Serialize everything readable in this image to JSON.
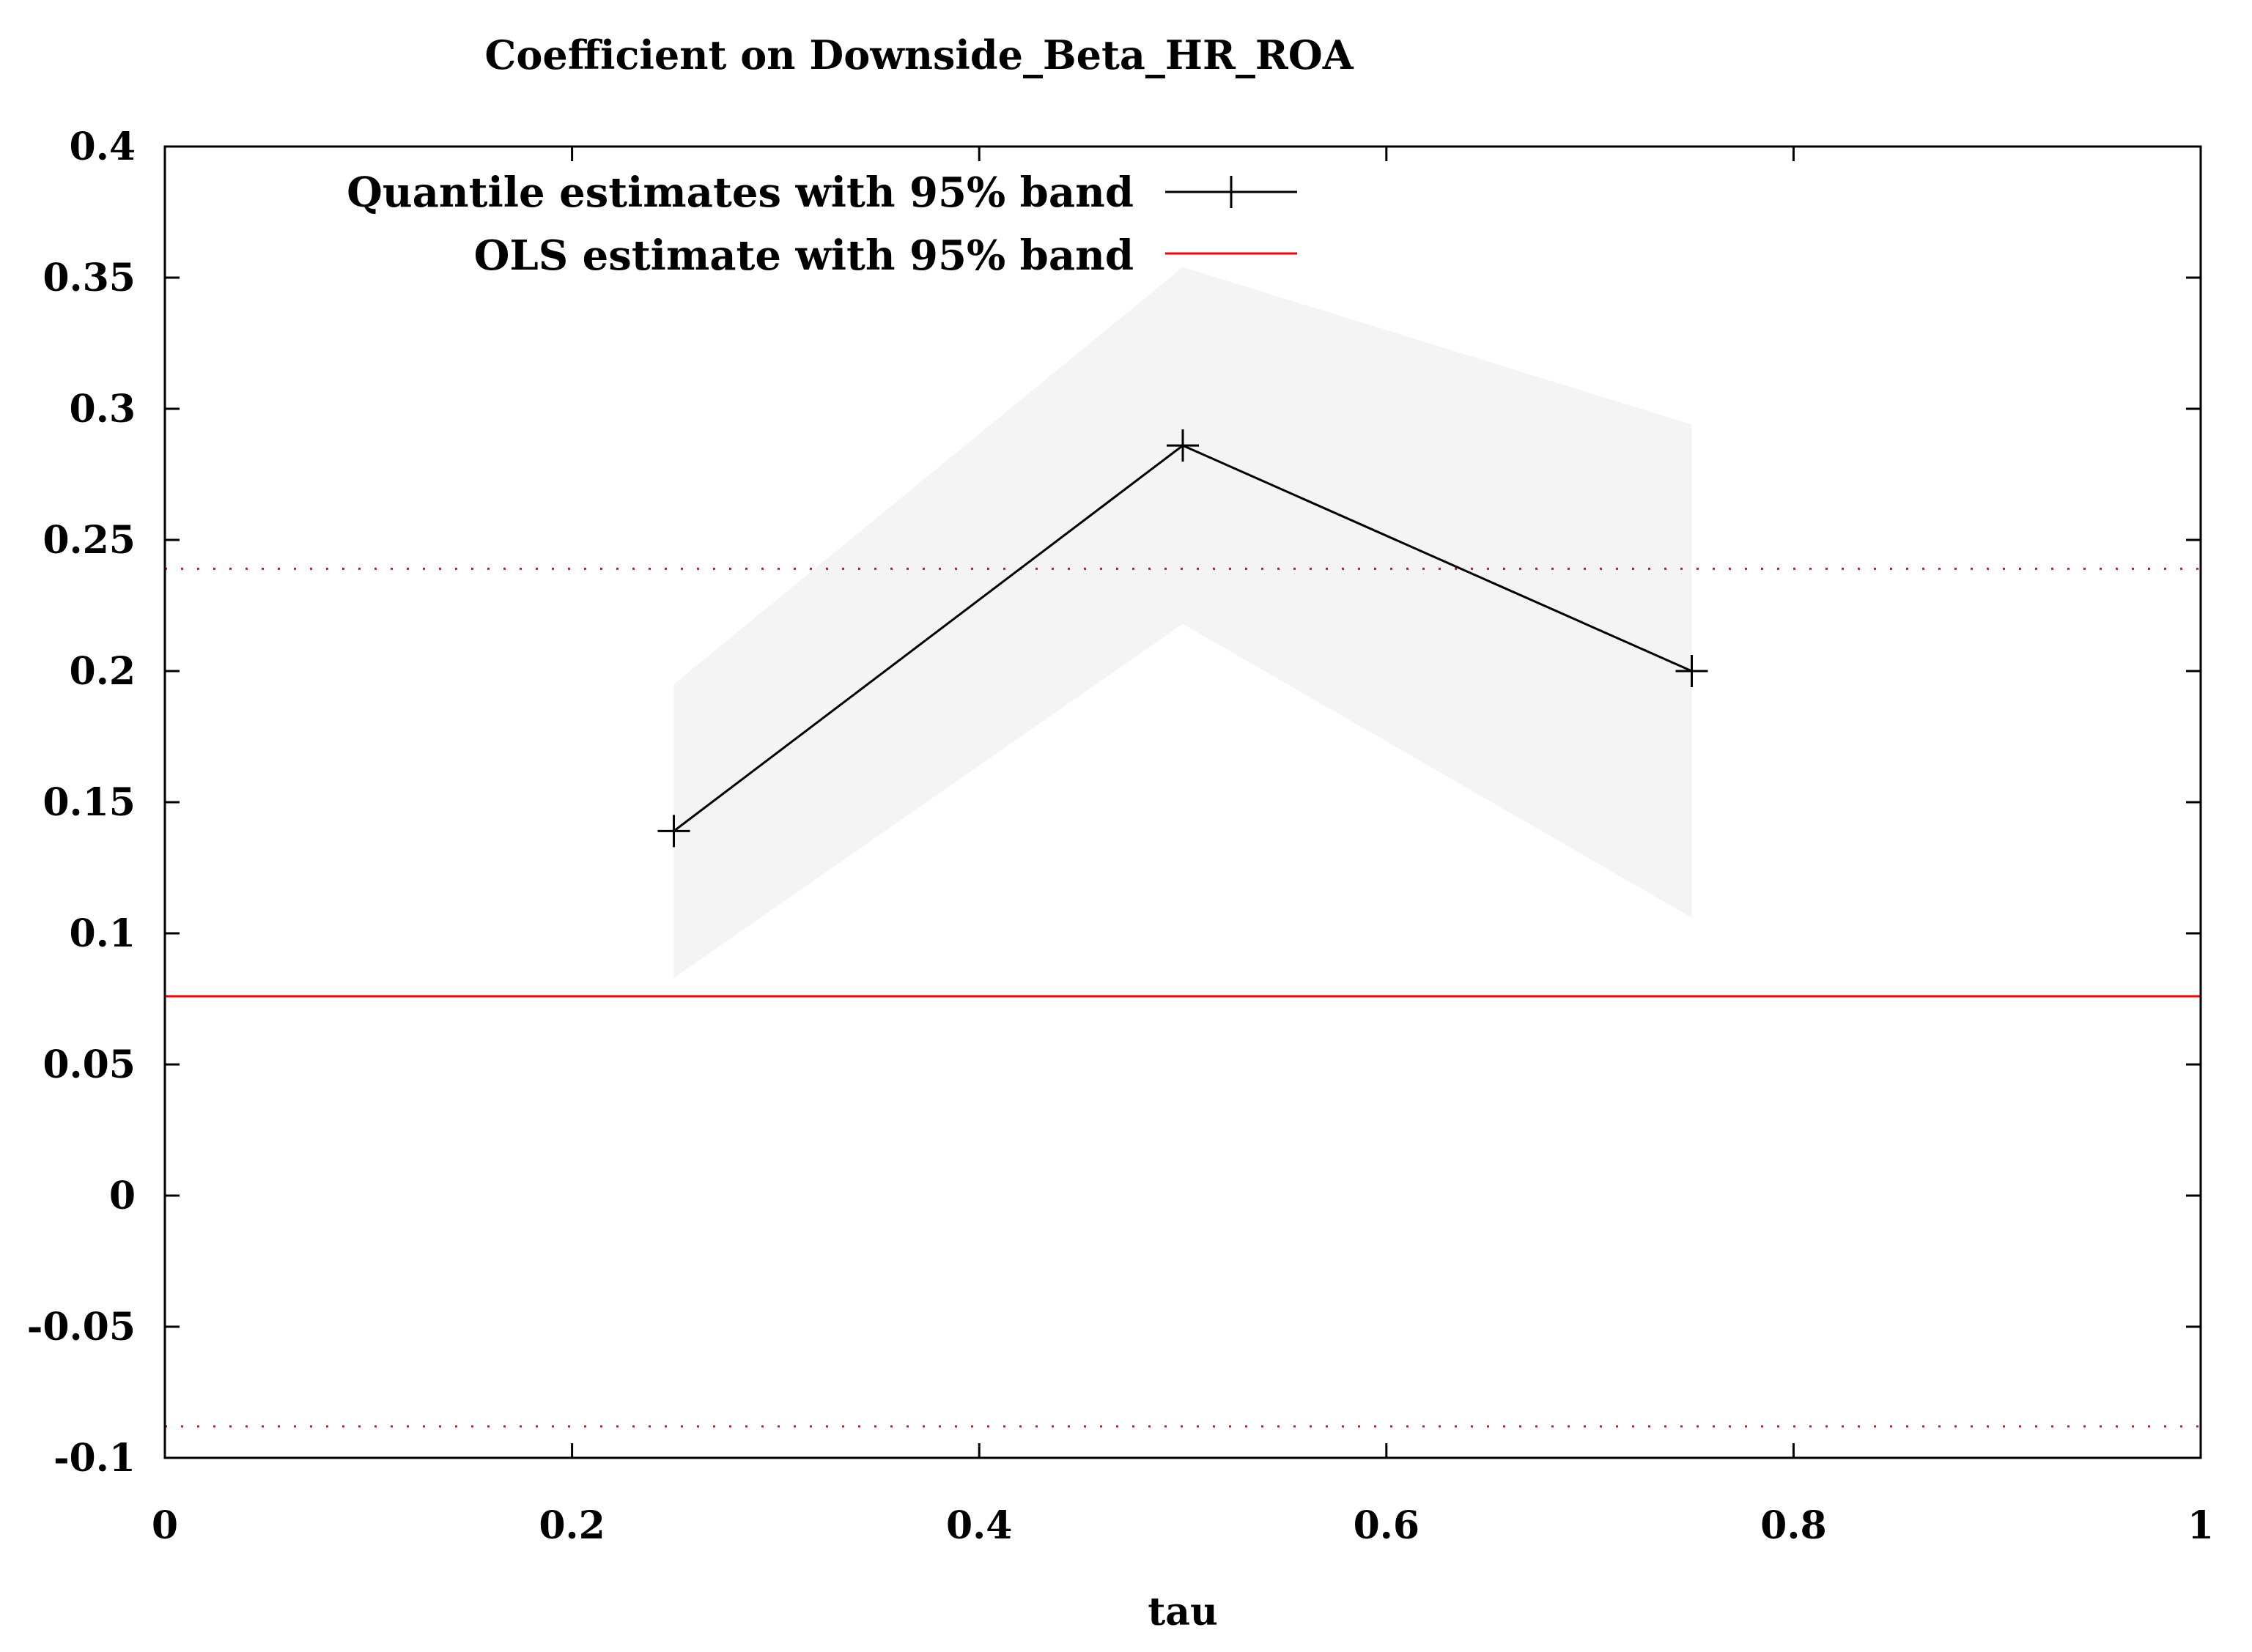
{
  "chart_data": {
    "type": "line",
    "title": "Coefficient on Downside_Beta_HR_ROA",
    "xlabel": "tau",
    "ylabel": "",
    "xlim": [
      0,
      1
    ],
    "ylim": [
      -0.1,
      0.4
    ],
    "grid": false,
    "legend_position": "top-left",
    "x_ticks": [
      {
        "value": 0,
        "label": "0"
      },
      {
        "value": 0.2,
        "label": "0.2"
      },
      {
        "value": 0.4,
        "label": "0.4"
      },
      {
        "value": 0.6,
        "label": "0.6"
      },
      {
        "value": 0.8,
        "label": "0.8"
      },
      {
        "value": 1,
        "label": "1"
      }
    ],
    "y_ticks": [
      {
        "value": 0.4,
        "label": "0.4"
      },
      {
        "value": 0.35,
        "label": "0.35"
      },
      {
        "value": 0.3,
        "label": "0.3"
      },
      {
        "value": 0.25,
        "label": "0.25"
      },
      {
        "value": 0.2,
        "label": "0.2"
      },
      {
        "value": 0.15,
        "label": "0.15"
      },
      {
        "value": 0.1,
        "label": "0.1"
      },
      {
        "value": 0.05,
        "label": "0.05"
      },
      {
        "value": 0,
        "label": "0"
      },
      {
        "value": -0.05,
        "label": "-0.05"
      },
      {
        "value": -0.1,
        "label": "-0.1"
      }
    ],
    "series": [
      {
        "name": "Quantile estimates with 95% band",
        "color": "#000000",
        "marker": "plus",
        "x": [
          0.25,
          0.5,
          0.75
        ],
        "values": [
          0.139,
          0.286,
          0.2
        ],
        "band_lower": [
          0.083,
          0.218,
          0.106
        ],
        "band_upper": [
          0.195,
          0.354,
          0.294
        ],
        "band_color": "#f4f4f4"
      },
      {
        "name": "OLS estimate with 95% band",
        "color": "#ff0000",
        "value": 0.076,
        "band_lower": -0.088,
        "band_upper": 0.239
      }
    ]
  }
}
